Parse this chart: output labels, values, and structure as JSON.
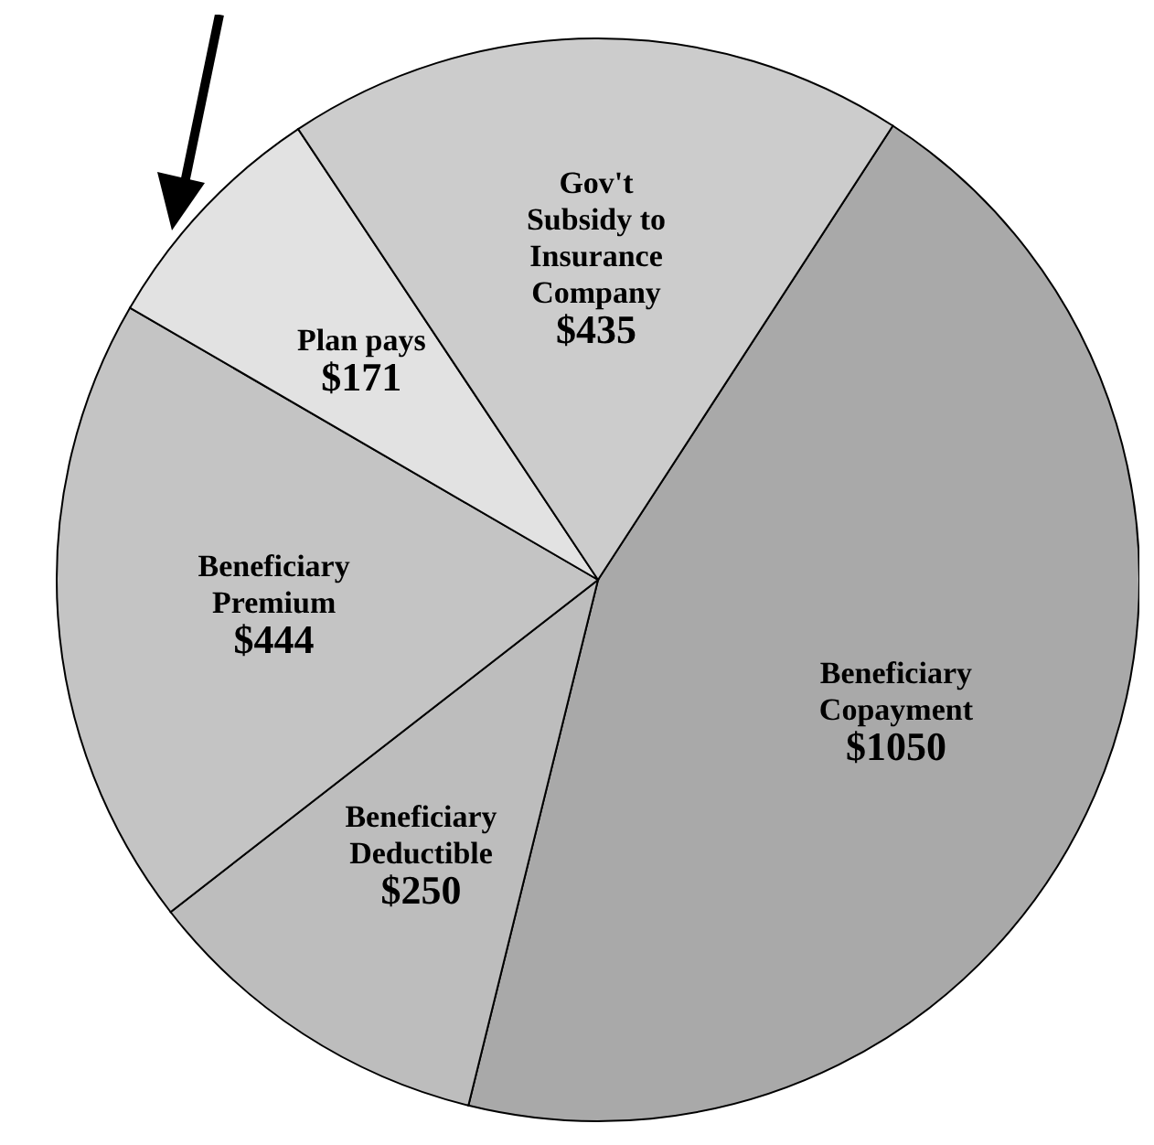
{
  "chart_data": {
    "type": "pie",
    "categories": [
      "Beneficiary Copayment",
      "Beneficiary Deductible",
      "Beneficiary Premium",
      "Plan pays",
      "Gov't Subsidy to Insurance Company"
    ],
    "values": [
      1050,
      250,
      444,
      171,
      435
    ],
    "value_labels": [
      "$1050",
      "$250",
      "$444",
      "$171",
      "$435"
    ],
    "colors": [
      "#a9a9a9",
      "#bdbdbd",
      "#c4c4c4",
      "#e2e2e2",
      "#cccccc"
    ],
    "legend": false
  }
}
